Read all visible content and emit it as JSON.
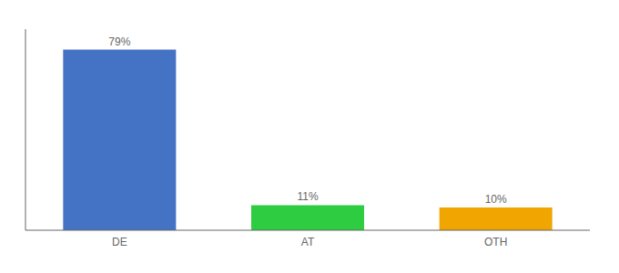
{
  "chart_data": {
    "type": "bar",
    "categories": [
      "DE",
      "AT",
      "OTH"
    ],
    "values": [
      79,
      11,
      10
    ],
    "value_labels": [
      "79%",
      "11%",
      "10%"
    ],
    "colors": [
      "#4472c4",
      "#2ecc40",
      "#f0a500"
    ],
    "ylim": [
      0,
      88
    ],
    "grid": false,
    "data_labels": true,
    "tick_labels": "x"
  }
}
